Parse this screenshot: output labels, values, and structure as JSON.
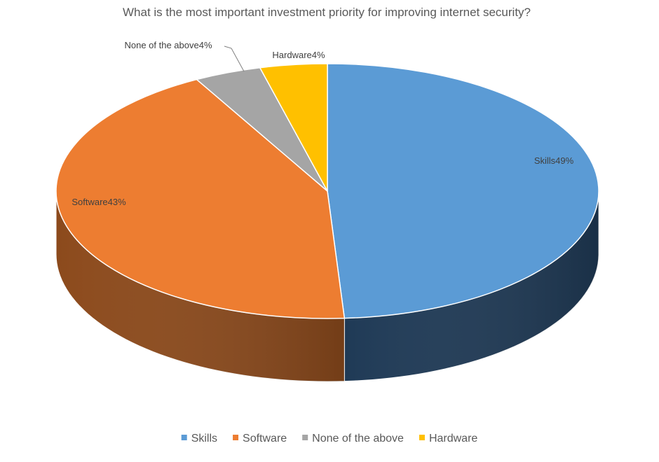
{
  "chart_data": {
    "type": "pie",
    "title": "What is the most important investment priority for improving internet security?",
    "categories": [
      "Skills",
      "Software",
      "None of the above",
      "Hardware"
    ],
    "values": [
      49,
      43,
      4,
      4
    ],
    "unit": "%",
    "labels": [
      "Skills49%",
      "Software43%",
      "None of the above4%",
      "Hardware4%"
    ],
    "colors": [
      "#5B9BD5",
      "#ED7D31",
      "#A5A5A5",
      "#FFC000"
    ],
    "side_colors": [
      "#1F3A56",
      "#8C4A1C",
      "#6A6A6A",
      "#A37B00"
    ],
    "style": "3d",
    "legend_position": "bottom"
  }
}
